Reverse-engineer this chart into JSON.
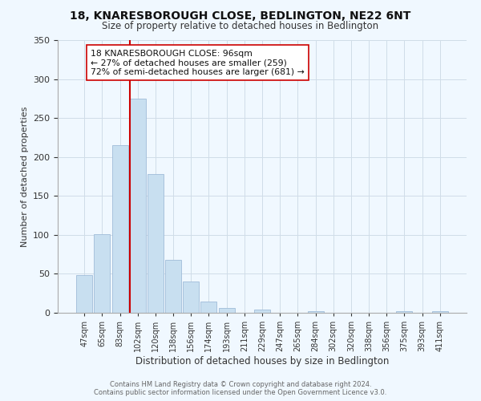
{
  "title": "18, KNARESBOROUGH CLOSE, BEDLINGTON, NE22 6NT",
  "subtitle": "Size of property relative to detached houses in Bedlington",
  "xlabel": "Distribution of detached houses by size in Bedlington",
  "ylabel": "Number of detached properties",
  "bar_labels": [
    "47sqm",
    "65sqm",
    "83sqm",
    "102sqm",
    "120sqm",
    "138sqm",
    "156sqm",
    "174sqm",
    "193sqm",
    "211sqm",
    "229sqm",
    "247sqm",
    "265sqm",
    "284sqm",
    "302sqm",
    "320sqm",
    "338sqm",
    "356sqm",
    "375sqm",
    "393sqm",
    "411sqm"
  ],
  "bar_values": [
    48,
    101,
    215,
    275,
    178,
    68,
    40,
    14,
    6,
    0,
    4,
    0,
    0,
    2,
    0,
    0,
    0,
    0,
    2,
    0,
    2
  ],
  "bar_color": "#c8dff0",
  "bar_edge_color": "#a0bcd8",
  "vline_x": 2.575,
  "vline_color": "#cc0000",
  "annotation_title": "18 KNARESBOROUGH CLOSE: 96sqm",
  "annotation_line1": "← 27% of detached houses are smaller (259)",
  "annotation_line2": "72% of semi-detached houses are larger (681) →",
  "annotation_box_color": "#ffffff",
  "annotation_box_edgecolor": "#cc0000",
  "ylim": [
    0,
    350
  ],
  "yticks": [
    0,
    50,
    100,
    150,
    200,
    250,
    300,
    350
  ],
  "footer_line1": "Contains HM Land Registry data © Crown copyright and database right 2024.",
  "footer_line2": "Contains public sector information licensed under the Open Government Licence v3.0.",
  "background_color": "#f0f8ff"
}
